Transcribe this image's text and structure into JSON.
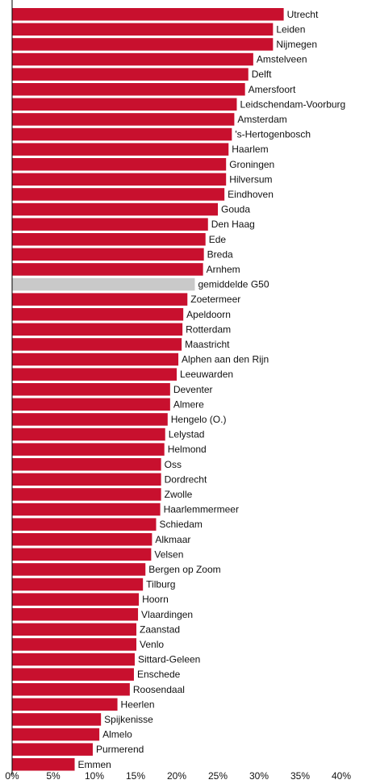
{
  "chart_data": {
    "type": "bar",
    "orientation": "horizontal",
    "categories": [
      "Utrecht",
      "Leiden",
      "Nijmegen",
      "Amstelveen",
      "Delft",
      "Amersfoort",
      "Leidschendam-Voorburg",
      "Amsterdam",
      "'s-Hertogenbosch",
      "Haarlem",
      "Groningen",
      "Hilversum",
      "Eindhoven",
      "Gouda",
      "Den Haag",
      "Ede",
      "Breda",
      "Arnhem",
      "gemiddelde G50",
      "Zoetermeer",
      "Apeldoorn",
      "Rotterdam",
      "Maastricht",
      "Alphen aan den Rijn",
      "Leeuwarden",
      "Deventer",
      "Almere",
      "Hengelo (O.)",
      "Lelystad",
      "Helmond",
      "Oss",
      "Dordrecht",
      "Zwolle",
      "Haarlemmermeer",
      "Schiedam",
      "Alkmaar",
      "Velsen",
      "Bergen op Zoom",
      "Tilburg",
      "Hoorn",
      "Vlaardingen",
      "Zaanstad",
      "Venlo",
      "Sittard-Geleen",
      "Enschede",
      "Roosendaal",
      "Heerlen",
      "Spijkenisse",
      "Almelo",
      "Purmerend",
      "Emmen"
    ],
    "values": [
      33.0,
      31.7,
      31.7,
      29.3,
      28.7,
      28.3,
      27.3,
      27.0,
      26.7,
      26.3,
      26.0,
      26.0,
      25.8,
      25.0,
      23.8,
      23.5,
      23.3,
      23.2,
      22.2,
      21.3,
      20.8,
      20.7,
      20.6,
      20.2,
      20.0,
      19.2,
      19.2,
      18.9,
      18.6,
      18.5,
      18.1,
      18.1,
      18.1,
      18.0,
      17.5,
      17.0,
      16.9,
      16.2,
      15.9,
      15.4,
      15.3,
      15.1,
      15.1,
      14.9,
      14.8,
      14.3,
      12.8,
      10.8,
      10.6,
      9.8,
      7.6
    ],
    "highlight_category": "gemiddelde G50",
    "colors": {
      "bar": "#c8102e",
      "highlight": "#c9c9c9",
      "axis": "#000000"
    },
    "xlim": [
      0,
      45
    ],
    "xticks": [
      0,
      5,
      10,
      15,
      20,
      25,
      30,
      35,
      40
    ],
    "xtick_labels": [
      "0%",
      "5%",
      "10%",
      "15%",
      "20%",
      "25%",
      "30%",
      "35%",
      "40%"
    ],
    "grid": false,
    "title": "",
    "xlabel": "",
    "ylabel": ""
  }
}
